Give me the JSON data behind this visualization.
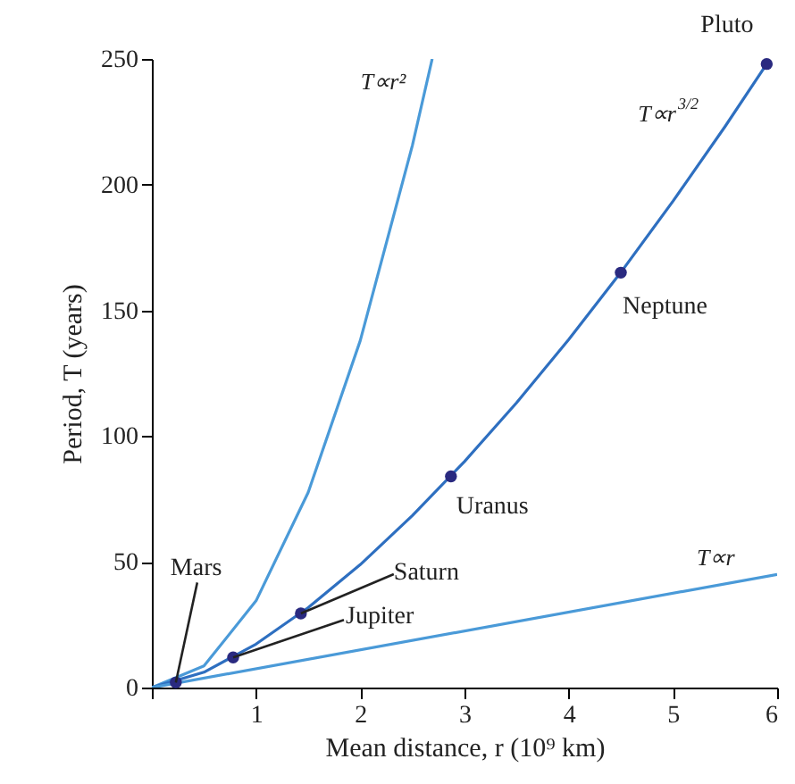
{
  "chart_data": {
    "type": "line",
    "xlabel": "Mean distance, r (10⁹ km)",
    "ylabel": "Period, T (years)",
    "xlim": [
      0,
      6
    ],
    "ylim": [
      0,
      250
    ],
    "xticks": [
      {
        "value": 0,
        "label": null
      },
      1,
      2,
      3,
      4,
      5,
      6
    ],
    "yticks": [
      0,
      50,
      100,
      150,
      200,
      250
    ],
    "grid": false,
    "line_style": "solid",
    "series": [
      {
        "name": "T∝r²",
        "color": "#4a9ad8",
        "x": [
          0,
          0.5,
          1,
          1.5,
          2,
          2.5,
          2.69
        ],
        "values": [
          0,
          8.6,
          34.5,
          77.6,
          138,
          215.6,
          250
        ]
      },
      {
        "name": "T∝r$^{3/2}$",
        "color": "#2e6fc0",
        "x": [
          0,
          0.5,
          1,
          1.5,
          2,
          2.5,
          3,
          3.5,
          4,
          4.5,
          5,
          5.5,
          5.9
        ],
        "values": [
          0,
          6.1,
          17.3,
          31.8,
          48.9,
          68.4,
          89.9,
          113.3,
          138.4,
          165.1,
          193.4,
          223.1,
          248
        ]
      },
      {
        "name": "T∝r",
        "color": "#4a9ad8",
        "x": [
          0,
          6
        ],
        "values": [
          0,
          45
        ]
      },
      {
        "type": "scatter",
        "marker": "circle",
        "color": "#2a2a80",
        "x": [
          0.23,
          0.78,
          1.43,
          2.87,
          4.5,
          5.9
        ],
        "values": [
          2,
          12,
          29.5,
          84,
          165,
          248
        ]
      }
    ],
    "annotations": [
      {
        "text": "Mars",
        "x": 0.23,
        "y": 2
      },
      {
        "text": "Jupiter",
        "x": 0.78,
        "y": 12
      },
      {
        "text": "Saturn",
        "x": 1.43,
        "y": 29.5
      },
      {
        "text": "Uranus",
        "x": 2.87,
        "y": 84
      },
      {
        "text": "Neptune",
        "x": 4.5,
        "y": 165
      },
      {
        "text": "Pluto",
        "x": 5.9,
        "y": 248
      }
    ]
  }
}
